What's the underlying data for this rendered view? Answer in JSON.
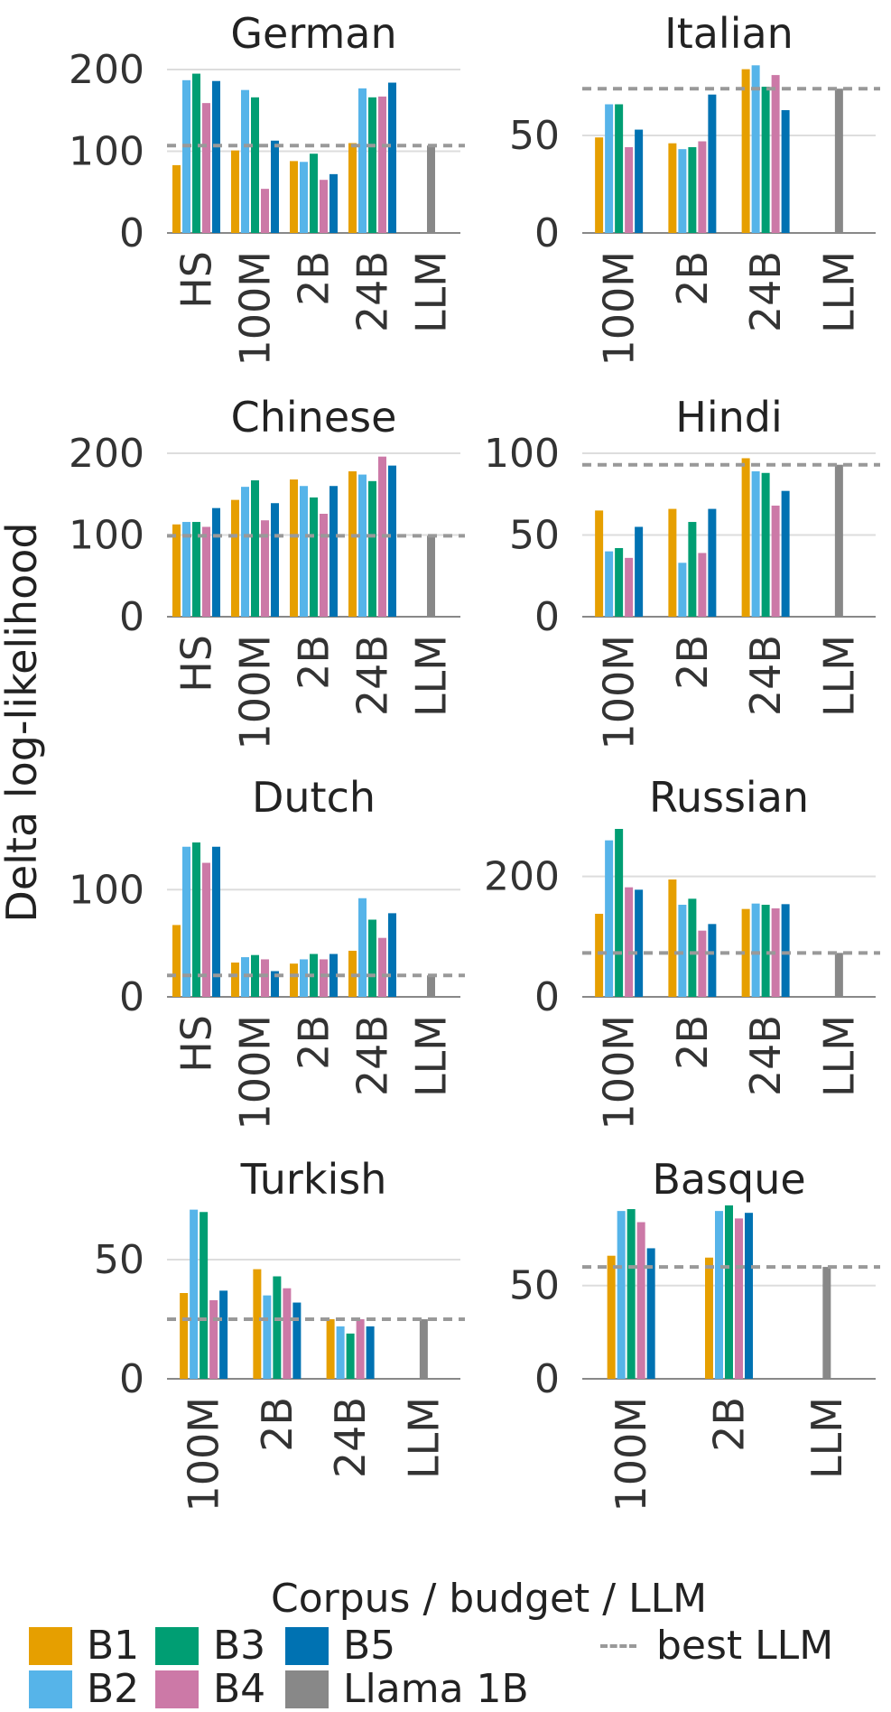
{
  "figure": {
    "ylabel": "Delta log-likelihood",
    "legend_title": "Corpus / budget / LLM",
    "colors": {
      "B1": "#E69F00",
      "B2": "#56B4E9",
      "B3": "#009E73",
      "B4": "#CC79A7",
      "B5": "#0072B2",
      "Llama 1B": "#888888",
      "best LLM": "#999999"
    },
    "legend": [
      {
        "label": "B1",
        "color": "#E69F00",
        "kind": "box"
      },
      {
        "label": "B3",
        "color": "#009E73",
        "kind": "box"
      },
      {
        "label": "B5",
        "color": "#0072B2",
        "kind": "box"
      },
      {
        "label": "best LLM",
        "color": "#999999",
        "kind": "dash"
      },
      {
        "label": "B2",
        "color": "#56B4E9",
        "kind": "box"
      },
      {
        "label": "B4",
        "color": "#CC79A7",
        "kind": "box"
      },
      {
        "label": "Llama 1B",
        "color": "#888888",
        "kind": "box"
      }
    ]
  },
  "chart_data": [
    {
      "type": "bar",
      "title": "German",
      "categories": [
        "HS",
        "100M",
        "2B",
        "24B",
        "LLM"
      ],
      "ylim": [
        0,
        210
      ],
      "yticks": [
        0,
        100,
        200
      ],
      "best_llm": 107,
      "series": [
        {
          "name": "B1",
          "values": [
            83,
            101,
            88,
            110,
            null
          ]
        },
        {
          "name": "B2",
          "values": [
            187,
            175,
            87,
            177,
            null
          ]
        },
        {
          "name": "B3",
          "values": [
            195,
            166,
            97,
            166,
            null
          ]
        },
        {
          "name": "B4",
          "values": [
            159,
            54,
            65,
            167,
            null
          ]
        },
        {
          "name": "B5",
          "values": [
            186,
            113,
            72,
            184,
            null
          ]
        },
        {
          "name": "Llama 1B",
          "values": [
            null,
            null,
            null,
            null,
            107
          ]
        }
      ]
    },
    {
      "type": "bar",
      "title": "Italian",
      "categories": [
        "100M",
        "2B",
        "24B",
        "LLM"
      ],
      "ylim": [
        0,
        88
      ],
      "yticks": [
        0,
        50
      ],
      "best_llm": 74,
      "series": [
        {
          "name": "B1",
          "values": [
            49,
            46,
            84,
            null
          ]
        },
        {
          "name": "B2",
          "values": [
            66,
            43,
            86,
            null
          ]
        },
        {
          "name": "B3",
          "values": [
            66,
            44,
            75,
            null
          ]
        },
        {
          "name": "B4",
          "values": [
            44,
            47,
            81,
            null
          ]
        },
        {
          "name": "B5",
          "values": [
            53,
            71,
            63,
            null
          ]
        },
        {
          "name": "Llama 1B",
          "values": [
            null,
            null,
            null,
            74
          ]
        }
      ]
    },
    {
      "type": "bar",
      "title": "Chinese",
      "categories": [
        "HS",
        "100M",
        "2B",
        "24B",
        "LLM"
      ],
      "ylim": [
        0,
        210
      ],
      "yticks": [
        0,
        100,
        200
      ],
      "best_llm": 99,
      "series": [
        {
          "name": "B1",
          "values": [
            113,
            143,
            168,
            178,
            null
          ]
        },
        {
          "name": "B2",
          "values": [
            116,
            159,
            160,
            174,
            null
          ]
        },
        {
          "name": "B3",
          "values": [
            116,
            167,
            146,
            166,
            null
          ]
        },
        {
          "name": "B4",
          "values": [
            110,
            118,
            126,
            196,
            null
          ]
        },
        {
          "name": "B5",
          "values": [
            133,
            139,
            160,
            185,
            null
          ]
        },
        {
          "name": "Llama 1B",
          "values": [
            null,
            null,
            null,
            null,
            99
          ]
        }
      ]
    },
    {
      "type": "bar",
      "title": "Hindi",
      "categories": [
        "100M",
        "2B",
        "24B",
        "LLM"
      ],
      "ylim": [
        0,
        105
      ],
      "yticks": [
        0,
        50,
        100
      ],
      "best_llm": 93,
      "series": [
        {
          "name": "B1",
          "values": [
            65,
            66,
            97,
            null
          ]
        },
        {
          "name": "B2",
          "values": [
            40,
            33,
            89,
            null
          ]
        },
        {
          "name": "B3",
          "values": [
            42,
            58,
            88,
            null
          ]
        },
        {
          "name": "B4",
          "values": [
            36,
            39,
            68,
            null
          ]
        },
        {
          "name": "B5",
          "values": [
            55,
            66,
            77,
            null
          ]
        },
        {
          "name": "Llama 1B",
          "values": [
            null,
            null,
            null,
            93
          ]
        }
      ]
    },
    {
      "type": "bar",
      "title": "Dutch",
      "categories": [
        "HS",
        "100M",
        "2B",
        "24B",
        "LLM"
      ],
      "ylim": [
        0,
        160
      ],
      "yticks": [
        0,
        100
      ],
      "best_llm": 20,
      "series": [
        {
          "name": "B1",
          "values": [
            67,
            32,
            31,
            43,
            null
          ]
        },
        {
          "name": "B2",
          "values": [
            140,
            37,
            35,
            92,
            null
          ]
        },
        {
          "name": "B3",
          "values": [
            144,
            39,
            40,
            72,
            null
          ]
        },
        {
          "name": "B4",
          "values": [
            125,
            35,
            35,
            55,
            null
          ]
        },
        {
          "name": "B5",
          "values": [
            140,
            24,
            40,
            78,
            null
          ]
        },
        {
          "name": "Llama 1B",
          "values": [
            null,
            null,
            null,
            null,
            20
          ]
        }
      ]
    },
    {
      "type": "bar",
      "title": "Russian",
      "categories": [
        "100M",
        "2B",
        "24B",
        "LLM"
      ],
      "ylim": [
        0,
        285
      ],
      "yticks": [
        0,
        200
      ],
      "best_llm": 73,
      "series": [
        {
          "name": "B1",
          "values": [
            138,
            195,
            146,
            null
          ]
        },
        {
          "name": "B2",
          "values": [
            260,
            153,
            155,
            null
          ]
        },
        {
          "name": "B3",
          "values": [
            279,
            163,
            153,
            null
          ]
        },
        {
          "name": "B4",
          "values": [
            182,
            110,
            147,
            null
          ]
        },
        {
          "name": "B5",
          "values": [
            178,
            121,
            154,
            null
          ]
        },
        {
          "name": "Llama 1B",
          "values": [
            null,
            null,
            null,
            73
          ]
        }
      ]
    },
    {
      "type": "bar",
      "title": "Turkish",
      "categories": [
        "100M",
        "2B",
        "24B",
        "LLM"
      ],
      "ylim": [
        0,
        72
      ],
      "yticks": [
        0,
        50
      ],
      "best_llm": 25,
      "series": [
        {
          "name": "B1",
          "values": [
            36,
            46,
            25,
            null
          ]
        },
        {
          "name": "B2",
          "values": [
            71,
            35,
            22,
            null
          ]
        },
        {
          "name": "B3",
          "values": [
            70,
            43,
            19,
            null
          ]
        },
        {
          "name": "B4",
          "values": [
            33,
            38,
            25,
            null
          ]
        },
        {
          "name": "B5",
          "values": [
            37,
            32,
            22,
            null
          ]
        },
        {
          "name": "Llama 1B",
          "values": [
            null,
            null,
            null,
            25
          ]
        }
      ]
    },
    {
      "type": "bar",
      "title": "Basque",
      "categories": [
        "100M",
        "2B",
        "LLM"
      ],
      "ylim": [
        0,
        92
      ],
      "yticks": [
        0,
        50
      ],
      "best_llm": 60,
      "series": [
        {
          "name": "B1",
          "values": [
            66,
            65,
            null
          ]
        },
        {
          "name": "B2",
          "values": [
            90,
            90,
            null
          ]
        },
        {
          "name": "B3",
          "values": [
            91,
            93,
            null
          ]
        },
        {
          "name": "B4",
          "values": [
            84,
            86,
            null
          ]
        },
        {
          "name": "B5",
          "values": [
            70,
            89,
            null
          ]
        },
        {
          "name": "Llama 1B",
          "values": [
            null,
            null,
            60
          ]
        }
      ]
    }
  ]
}
